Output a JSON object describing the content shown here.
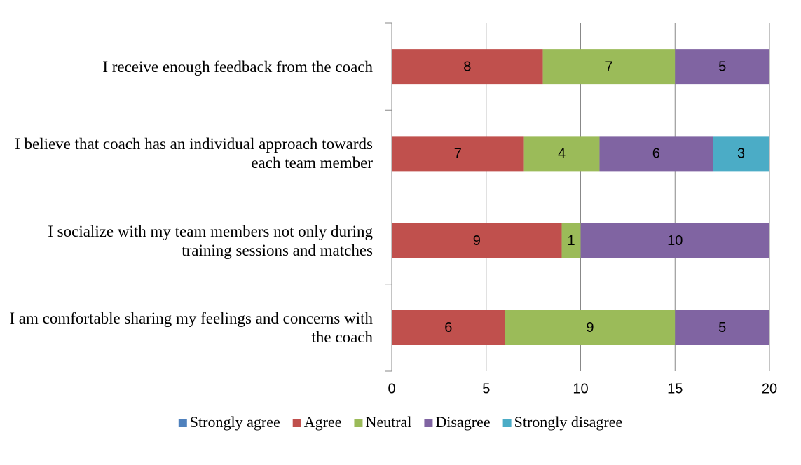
{
  "chart_data": {
    "type": "stacked-barh",
    "categories": [
      "I receive enough feedback from the coach",
      "I believe that coach has an individual approach towards each team member",
      "I socialize with my team members not only during training sessions and matches",
      "I am comfortable sharing my feelings and concerns with the coach"
    ],
    "series": [
      {
        "name": "Strongly agree",
        "color": "#4f81bd",
        "values": [
          0,
          0,
          0,
          0
        ]
      },
      {
        "name": "Agree",
        "color": "#c0504d",
        "values": [
          8,
          7,
          9,
          6
        ]
      },
      {
        "name": "Neutral",
        "color": "#9bbb59",
        "values": [
          7,
          4,
          1,
          9
        ]
      },
      {
        "name": "Disagree",
        "color": "#8064a2",
        "values": [
          5,
          6,
          10,
          5
        ]
      },
      {
        "name": "Strongly disagree",
        "color": "#4bacc6",
        "values": [
          0,
          3,
          0,
          0
        ]
      }
    ],
    "xlim": [
      0,
      20
    ],
    "xticks": [
      0,
      5,
      10,
      15,
      20
    ],
    "grid": true,
    "legend": "bottom"
  }
}
